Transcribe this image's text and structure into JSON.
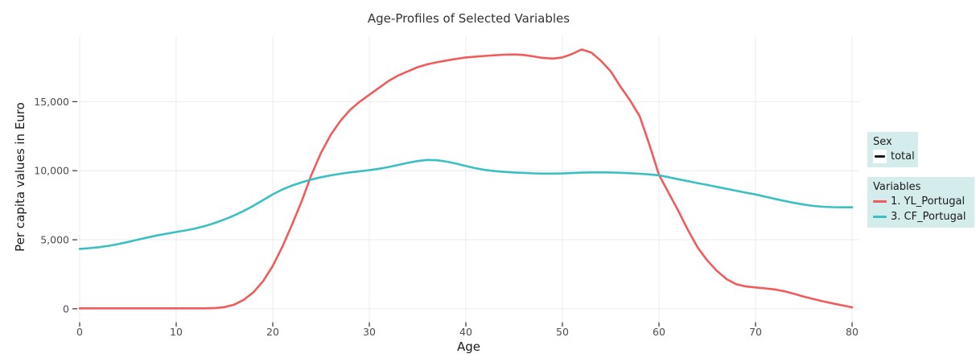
{
  "title": "Age-Profiles of Selected Variables",
  "axes": {
    "x": {
      "label": "Age"
    },
    "y": {
      "label": "Per capita values in Euro"
    }
  },
  "legends": [
    {
      "title": "Sex",
      "items": [
        {
          "label": "total",
          "color": "#1A1A1A",
          "swatch_bg": "#FFFFFF"
        }
      ]
    },
    {
      "title": "Variables",
      "items": [
        {
          "label": "1. YL_Portugal",
          "color": "#F15B5B",
          "swatch_bg": ""
        },
        {
          "label": "3. CF_Portugal",
          "color": "#3BBFC1",
          "swatch_bg": ""
        }
      ]
    }
  ],
  "styles": {
    "legend_bg": "#D5ECEC",
    "grid": "#EBEBEB",
    "tick_text": "#4D4D4D",
    "tick_mark": "#333333",
    "title_text": "#333333",
    "axis_title_text": "#1A1A1A",
    "panel_bg": "#FFFFFF"
  },
  "chart_data": {
    "type": "line",
    "title": "Age-Profiles of Selected Variables",
    "xlabel": "Age",
    "ylabel": "Per capita values in Euro",
    "xlim": [
      0,
      80
    ],
    "ylim": [
      -940,
      19740
    ],
    "x_ticks": [
      0,
      10,
      20,
      30,
      40,
      50,
      60,
      70,
      80
    ],
    "y_ticks": [
      0,
      5000,
      10000,
      15000
    ],
    "y_tick_labels": [
      "0",
      "5,000",
      "10,000",
      "15,000"
    ],
    "grid": true,
    "legend_position": "right",
    "x": [
      0,
      1,
      2,
      3,
      4,
      5,
      6,
      7,
      8,
      9,
      10,
      11,
      12,
      13,
      14,
      15,
      16,
      17,
      18,
      19,
      20,
      21,
      22,
      23,
      24,
      25,
      26,
      27,
      28,
      29,
      30,
      31,
      32,
      33,
      34,
      35,
      36,
      37,
      38,
      39,
      40,
      41,
      42,
      43,
      44,
      45,
      46,
      47,
      48,
      49,
      50,
      51,
      52,
      53,
      54,
      55,
      56,
      57,
      58,
      59,
      60,
      61,
      62,
      63,
      64,
      65,
      66,
      67,
      68,
      69,
      70,
      71,
      72,
      73,
      74,
      75,
      76,
      77,
      78,
      79,
      80
    ],
    "series": [
      {
        "name": "1. YL_Portugal",
        "color": "#F15B5B",
        "values": [
          30,
          30,
          30,
          30,
          30,
          30,
          30,
          30,
          30,
          30,
          30,
          30,
          30,
          35,
          55,
          120,
          300,
          650,
          1200,
          2000,
          3100,
          4500,
          6100,
          7800,
          9700,
          11300,
          12600,
          13600,
          14400,
          15000,
          15500,
          16000,
          16500,
          16900,
          17200,
          17500,
          17700,
          17850,
          17980,
          18100,
          18200,
          18260,
          18310,
          18360,
          18400,
          18420,
          18380,
          18280,
          18160,
          18120,
          18200,
          18450,
          18780,
          18550,
          17950,
          17200,
          16100,
          15100,
          13950,
          11900,
          9700,
          8400,
          7100,
          5700,
          4450,
          3500,
          2750,
          2150,
          1780,
          1620,
          1550,
          1480,
          1400,
          1270,
          1080,
          880,
          700,
          540,
          390,
          250,
          110
        ]
      },
      {
        "name": "3. CF_Portugal",
        "color": "#3BBFC1",
        "values": [
          4340,
          4390,
          4460,
          4560,
          4690,
          4840,
          5000,
          5160,
          5310,
          5440,
          5560,
          5680,
          5820,
          6000,
          6220,
          6470,
          6760,
          7090,
          7460,
          7870,
          8290,
          8640,
          8930,
          9160,
          9360,
          9530,
          9660,
          9780,
          9880,
          9960,
          10040,
          10140,
          10270,
          10420,
          10570,
          10700,
          10780,
          10760,
          10660,
          10510,
          10340,
          10180,
          10050,
          9970,
          9910,
          9870,
          9840,
          9810,
          9790,
          9790,
          9800,
          9830,
          9860,
          9880,
          9880,
          9870,
          9850,
          9820,
          9780,
          9730,
          9670,
          9530,
          9380,
          9240,
          9100,
          8970,
          8830,
          8690,
          8550,
          8410,
          8280,
          8120,
          7960,
          7810,
          7670,
          7550,
          7450,
          7390,
          7360,
          7350,
          7350
        ]
      }
    ]
  }
}
